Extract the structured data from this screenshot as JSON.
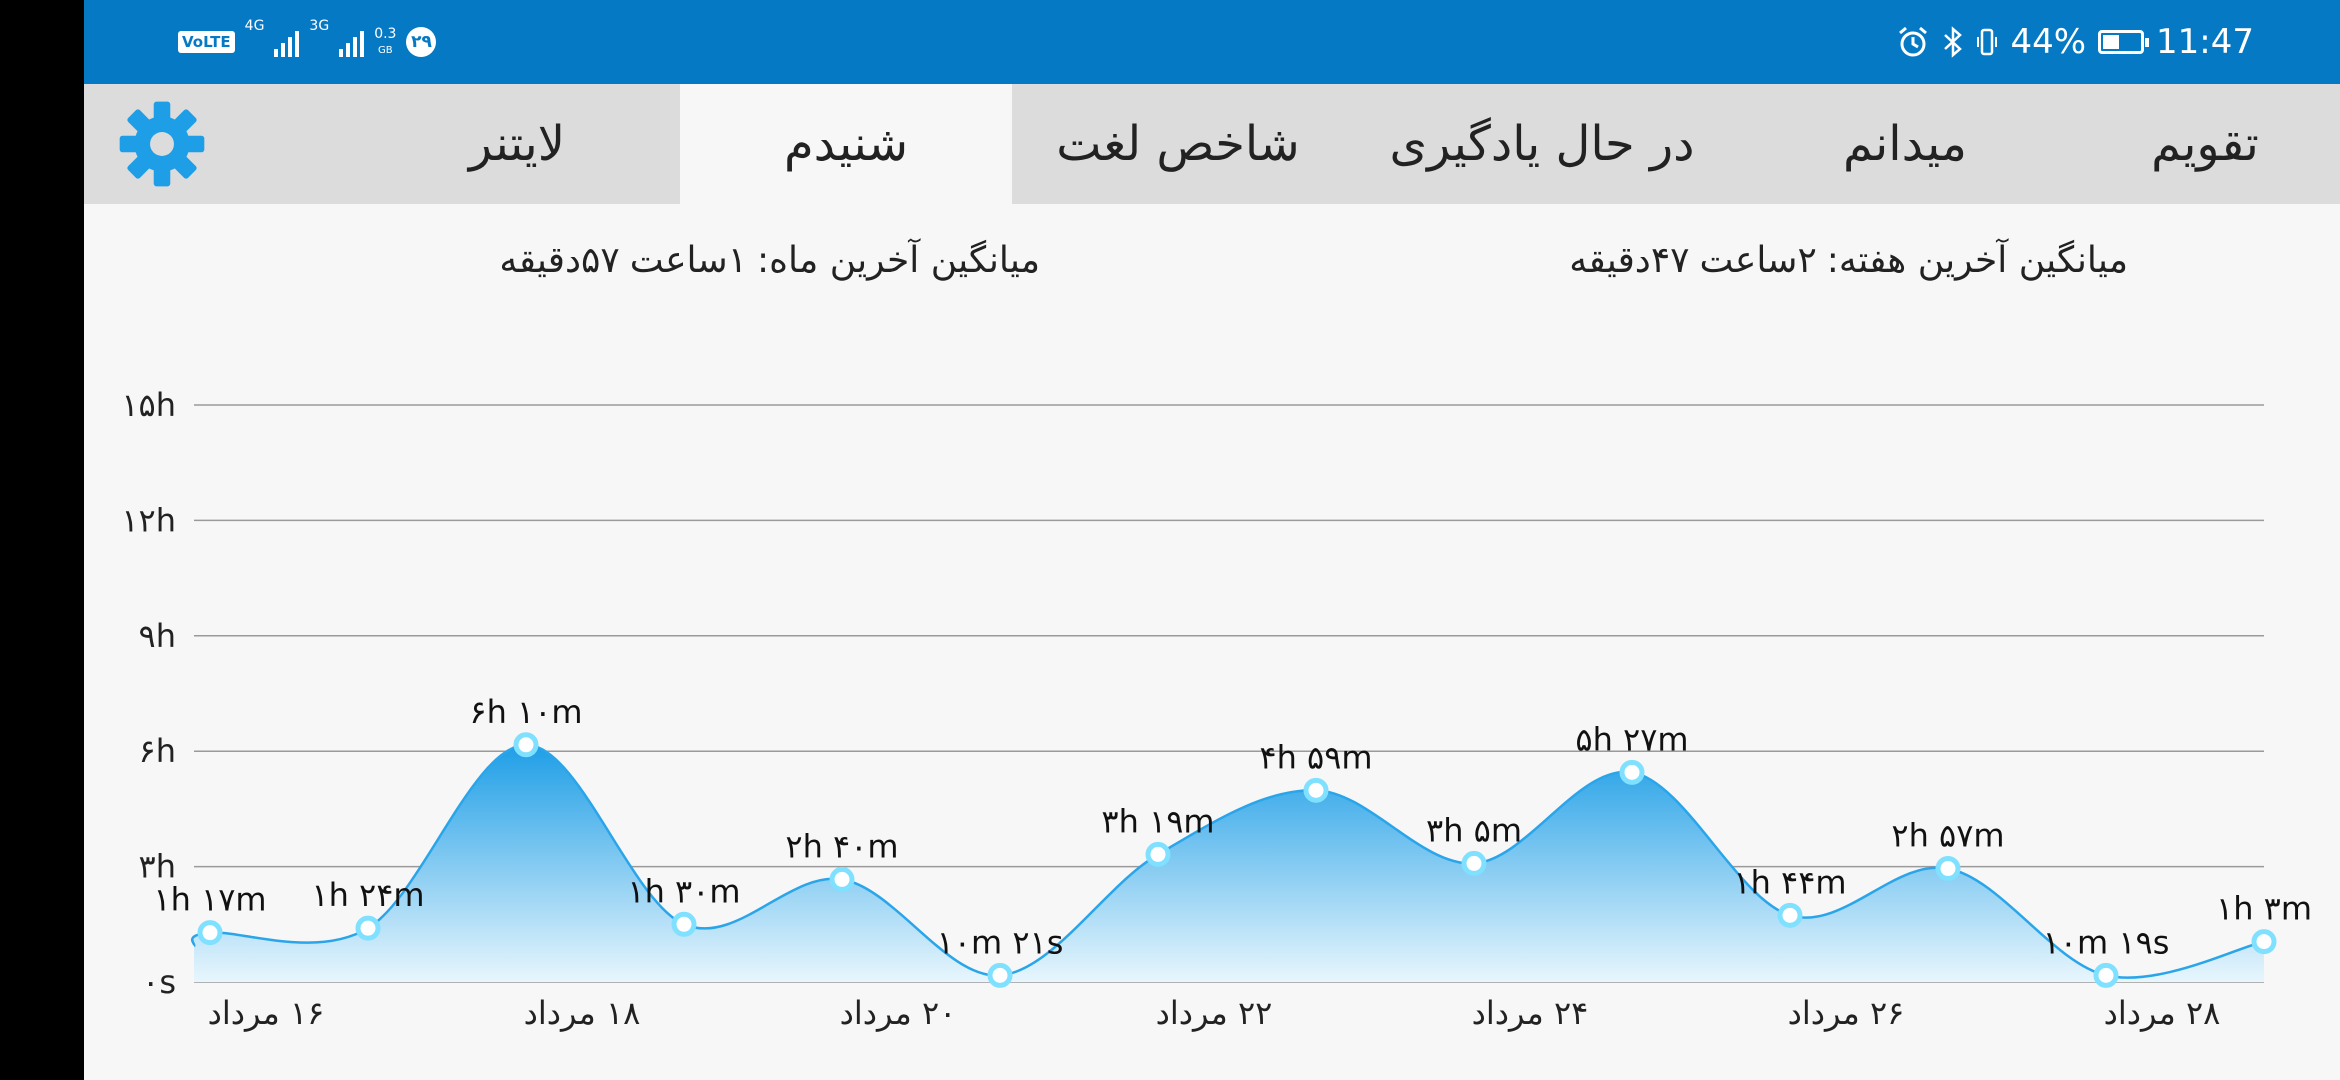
{
  "status_bar": {
    "volte": "VoLTE",
    "network_1": "4G",
    "network_2": "3G",
    "speed": "0.3",
    "speed_unit": "GB",
    "notification_count": "۲۹",
    "battery_percent": "44%",
    "battery_level": 0.44,
    "time": "11:47",
    "icons": [
      "alarm-icon",
      "bluetooth-icon",
      "vibrate-icon",
      "battery-icon"
    ]
  },
  "tabs": [
    {
      "label": "تقویم",
      "active": false
    },
    {
      "label": "میدانم",
      "active": false
    },
    {
      "label": "در حال یادگیری",
      "active": false
    },
    {
      "label": "شاخص لغت",
      "active": false
    },
    {
      "label": "شنیدم",
      "active": true
    },
    {
      "label": "لایتنر",
      "active": false
    }
  ],
  "settings_icon": "gear-icon",
  "summary": {
    "week_label": "میانگین آخرین هفته:",
    "week_value_hours": "۲ساعت",
    "week_value_minutes": "۴۷دقیقه",
    "month_label": "میانگین آخرین ماه:",
    "month_value_hours": "۱ساعت",
    "month_value_minutes": "۵۷دقیقه"
  },
  "colors": {
    "header": "#0679c4",
    "accent": "#1e9ee6",
    "line": "#2aa5ea",
    "point_fill": "#ffffff",
    "point_stroke": "#7fe0ff"
  },
  "chart_data": {
    "type": "area",
    "y_unit": "hours",
    "ylim": [
      0,
      15
    ],
    "y_ticks": [
      {
        "value": 0,
        "label": "۰s"
      },
      {
        "value": 3,
        "label": "۳h"
      },
      {
        "value": 6,
        "label": "۶h"
      },
      {
        "value": 9,
        "label": "۹h"
      },
      {
        "value": 12,
        "label": "۱۲h"
      },
      {
        "value": 15,
        "label": "۱۵h"
      }
    ],
    "grid": true,
    "x_labels": [
      "۱۶ مرداد",
      "۱۸ مرداد",
      "۲۰ مرداد",
      "۲۲ مرداد",
      "۲۴ مرداد",
      "۲۶ مرداد",
      "۲۸ مرداد"
    ],
    "points": [
      {
        "value": 1.283,
        "label": "۱h ۱۷m"
      },
      {
        "value": 1.4,
        "label": "۱h ۲۴m"
      },
      {
        "value": 6.167,
        "label": "۶h ۱۰m"
      },
      {
        "value": 1.5,
        "label": "۱h ۳۰m"
      },
      {
        "value": 2.667,
        "label": "۲h ۴۰m"
      },
      {
        "value": 0.172,
        "label": "۱۰m ۲۱s"
      },
      {
        "value": 3.317,
        "label": "۳h ۱۹m"
      },
      {
        "value": 4.983,
        "label": "۴h ۵۹m"
      },
      {
        "value": 3.083,
        "label": "۳h ۵m"
      },
      {
        "value": 5.45,
        "label": "۵h ۲۷m"
      },
      {
        "value": 1.733,
        "label": "۱h ۴۴m"
      },
      {
        "value": 2.95,
        "label": "۲h ۵۷m"
      },
      {
        "value": 0.172,
        "label": "۱۰m ۱۹s"
      },
      {
        "value": 1.05,
        "label": "۱h ۳m"
      }
    ]
  }
}
